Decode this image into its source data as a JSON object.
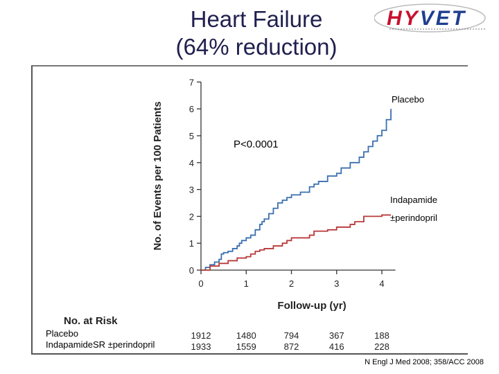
{
  "header": {
    "title_line1": "Heart Failure",
    "title_line2": "(64% reduction)",
    "logo_text": "HYVET",
    "logo_colors": {
      "primary": "#c8102e",
      "secondary": "#1f3f8f"
    }
  },
  "chart_data": {
    "type": "line",
    "title": "",
    "xlabel": "Follow-up (yr)",
    "ylabel": "No. of Events per 100 Patients",
    "xlim": [
      0,
      4.3
    ],
    "ylim": [
      0,
      7
    ],
    "xticks": [
      0,
      1,
      2,
      3,
      4
    ],
    "yticks": [
      0,
      1,
      2,
      3,
      4,
      5,
      6,
      7
    ],
    "grid": false,
    "annotation": "P<0.0001",
    "series": [
      {
        "name": "Placebo",
        "label_lines": [
          "Placebo"
        ],
        "color": "#3a6fb0",
        "points": [
          [
            0,
            0
          ],
          [
            0.1,
            0.1
          ],
          [
            0.2,
            0.2
          ],
          [
            0.3,
            0.3
          ],
          [
            0.4,
            0.4
          ],
          [
            0.45,
            0.6
          ],
          [
            0.5,
            0.65
          ],
          [
            0.6,
            0.7
          ],
          [
            0.7,
            0.8
          ],
          [
            0.8,
            0.9
          ],
          [
            0.85,
            1.0
          ],
          [
            0.9,
            1.1
          ],
          [
            1.0,
            1.2
          ],
          [
            1.1,
            1.3
          ],
          [
            1.2,
            1.5
          ],
          [
            1.3,
            1.7
          ],
          [
            1.35,
            1.8
          ],
          [
            1.4,
            1.9
          ],
          [
            1.5,
            2.1
          ],
          [
            1.6,
            2.3
          ],
          [
            1.7,
            2.5
          ],
          [
            1.8,
            2.6
          ],
          [
            1.9,
            2.7
          ],
          [
            2.0,
            2.8
          ],
          [
            2.2,
            2.9
          ],
          [
            2.4,
            3.1
          ],
          [
            2.5,
            3.2
          ],
          [
            2.6,
            3.3
          ],
          [
            2.8,
            3.5
          ],
          [
            3.0,
            3.6
          ],
          [
            3.1,
            3.8
          ],
          [
            3.3,
            4.0
          ],
          [
            3.5,
            4.2
          ],
          [
            3.6,
            4.4
          ],
          [
            3.7,
            4.6
          ],
          [
            3.8,
            4.8
          ],
          [
            3.9,
            5.0
          ],
          [
            4.0,
            5.2
          ],
          [
            4.1,
            5.6
          ],
          [
            4.2,
            5.9
          ],
          [
            4.2,
            6.0
          ]
        ]
      },
      {
        "name": "Indapamide ±perindopril",
        "label_lines": [
          "Indapamide",
          "±perindopril"
        ],
        "color": "#b83a3a",
        "points": [
          [
            0,
            0
          ],
          [
            0.2,
            0.15
          ],
          [
            0.4,
            0.25
          ],
          [
            0.6,
            0.35
          ],
          [
            0.8,
            0.45
          ],
          [
            1.0,
            0.5
          ],
          [
            1.1,
            0.6
          ],
          [
            1.2,
            0.7
          ],
          [
            1.3,
            0.75
          ],
          [
            1.4,
            0.8
          ],
          [
            1.6,
            0.9
          ],
          [
            1.8,
            1.0
          ],
          [
            1.9,
            1.1
          ],
          [
            2.0,
            1.2
          ],
          [
            2.4,
            1.3
          ],
          [
            2.5,
            1.45
          ],
          [
            2.8,
            1.5
          ],
          [
            3.0,
            1.6
          ],
          [
            3.3,
            1.7
          ],
          [
            3.4,
            1.8
          ],
          [
            3.6,
            2.0
          ],
          [
            4.0,
            2.05
          ],
          [
            4.2,
            2.05
          ]
        ]
      }
    ],
    "at_risk": {
      "title": "No. at Risk",
      "groups": [
        {
          "label": "Placebo",
          "values": [
            "1912",
            "1480",
            "794",
            "367",
            "188"
          ]
        },
        {
          "label": "IndapamideSR ±perindopril",
          "values": [
            "1933",
            "1559",
            "872",
            "416",
            "228"
          ]
        }
      ]
    }
  },
  "footer": {
    "citation": "N Engl J Med 2008; 358/ACC 2008"
  }
}
